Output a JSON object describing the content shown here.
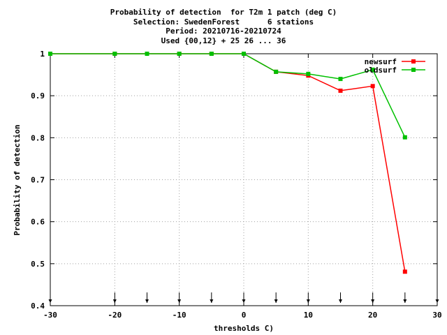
{
  "chart_data": {
    "type": "line",
    "title": [
      "Probability of detection  for T2m 1 patch (deg C)",
      "Selection: SwedenForest      6 stations",
      "Period: 20210716-20210724",
      "Used {00,12} + 25 26 ... 36"
    ],
    "xlabel": "thresholds C)",
    "ylabel": "Probability of detection",
    "xlim": [
      -30,
      30
    ],
    "ylim": [
      0.4,
      1.0
    ],
    "xticks": [
      -30,
      -20,
      -10,
      0,
      10,
      20,
      30
    ],
    "xtick_labels": [
      "-30",
      "-20",
      "-10",
      "0",
      "10",
      "20",
      "30"
    ],
    "yticks": [
      0.4,
      0.5,
      0.6,
      0.7,
      0.8,
      0.9,
      1.0
    ],
    "ytick_labels": [
      "0.4",
      "0.5",
      "0.6",
      "0.7",
      "0.8",
      "0.9",
      "1"
    ],
    "grid": true,
    "legend_position": "top-right",
    "threshold_markers": [
      -30,
      -20,
      -15,
      -10,
      -5,
      0,
      5,
      10,
      15,
      20,
      25,
      30
    ],
    "x": [
      -30,
      -20,
      -15,
      -10,
      -5,
      0,
      5,
      10,
      15,
      20,
      25
    ],
    "series": [
      {
        "name": "newsurf",
        "color": "#ff0000",
        "values": [
          1.0,
          1.0,
          1.0,
          1.0,
          1.0,
          1.0,
          0.957,
          0.948,
          0.912,
          0.923,
          0.481
        ]
      },
      {
        "name": "oldsurf",
        "color": "#00c000",
        "values": [
          1.0,
          1.0,
          1.0,
          1.0,
          1.0,
          1.0,
          0.957,
          0.952,
          0.94,
          0.962,
          0.801
        ]
      }
    ]
  }
}
